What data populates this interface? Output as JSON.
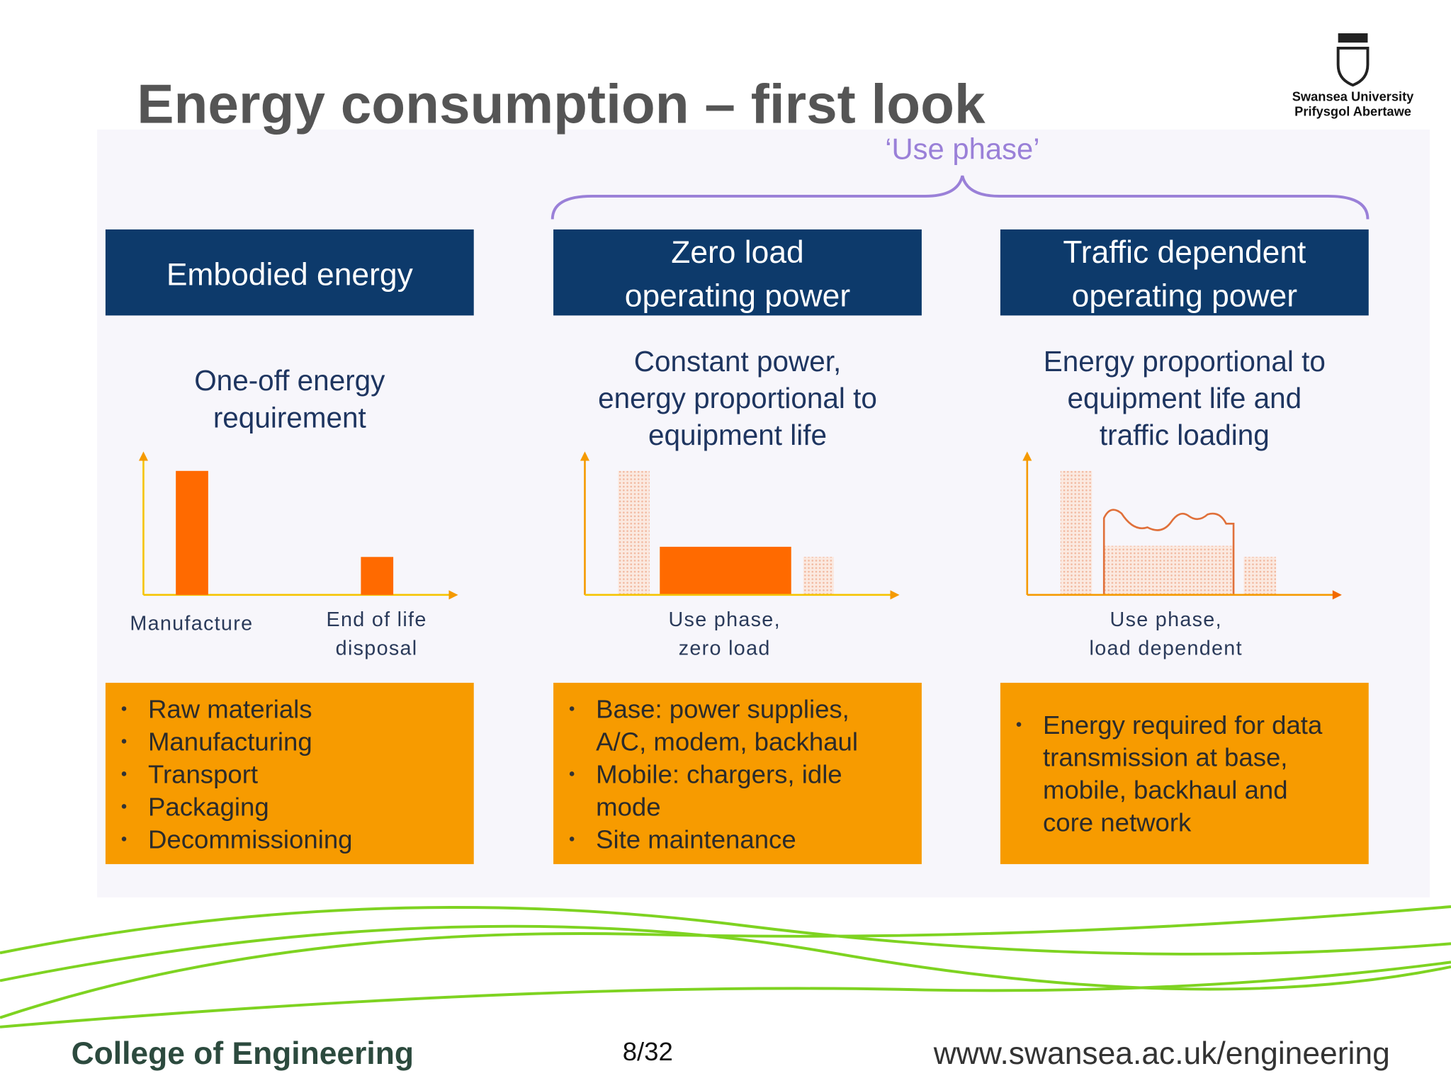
{
  "title": "Energy consumption – first look",
  "logo": {
    "name": "Swansea University",
    "name_welsh": "Prifysgol Abertawe"
  },
  "use_phase_label": "‘Use phase’",
  "columns": [
    {
      "header": [
        "Embodied energy"
      ],
      "description": [
        "One-off energy",
        "requirement"
      ],
      "axis_labels": [
        [
          "Manufacture"
        ],
        [
          "End of life",
          "disposal"
        ]
      ],
      "bullets": [
        [
          "Raw materials"
        ],
        [
          "Manufacturing"
        ],
        [
          "Transport"
        ],
        [
          "Packaging"
        ],
        [
          "Decommissioning"
        ]
      ]
    },
    {
      "header": [
        "Zero load",
        "operating power"
      ],
      "description": [
        "Constant power,",
        "energy proportional to",
        "equipment life"
      ],
      "axis_labels": [
        [
          "Use phase,",
          "zero load"
        ]
      ],
      "bullets": [
        [
          "Base: power supplies,",
          "A/C, modem, backhaul"
        ],
        [
          "Mobile: chargers, idle",
          "mode"
        ],
        [
          "Site maintenance"
        ]
      ]
    },
    {
      "header": [
        "Traffic dependent",
        "operating power"
      ],
      "description": [
        "Energy proportional to",
        "equipment life and",
        "traffic loading"
      ],
      "axis_labels": [
        [
          "Use phase,",
          "load dependent"
        ]
      ],
      "bullets": [
        [
          "Energy required for data",
          "transmission at base,",
          "mobile, backhaul and",
          "core network"
        ]
      ]
    }
  ],
  "footer": {
    "college": "College of Engineering",
    "page": "8/32",
    "url": "www.swansea.ac.uk/engineering"
  }
}
